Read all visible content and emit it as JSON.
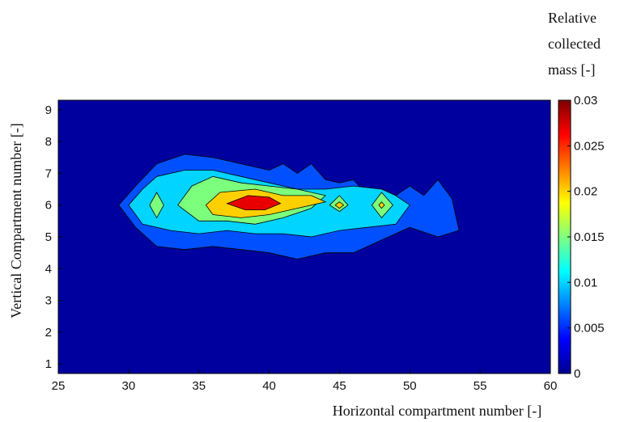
{
  "chart_data": {
    "type": "heatmap",
    "subtype": "filled-contour",
    "title": "",
    "xlabel": "Horizontal compartment number [-]",
    "ylabel": "Vertical Compartment number [-]",
    "xlim": [
      25,
      60
    ],
    "ylim": [
      1,
      9
    ],
    "x_ticks": [
      "25",
      "30",
      "35",
      "40",
      "45",
      "50",
      "55",
      "60"
    ],
    "y_ticks": [
      "1",
      "2",
      "3",
      "4",
      "5",
      "6",
      "7",
      "8",
      "9"
    ],
    "colorbar": {
      "title_lines": [
        "Relative",
        "collected",
        "mass [-]"
      ],
      "range": [
        0,
        0.03
      ],
      "ticks": [
        "0",
        "0.005",
        "0.01",
        "0.015",
        "0.02",
        "0.025",
        "0.03"
      ],
      "colormap": "jet"
    },
    "contour_levels": [
      {
        "level": 0,
        "color": "#00009F"
      },
      {
        "level": 0.005,
        "color": "#0050FF"
      },
      {
        "level": 0.01,
        "color": "#00D4FF"
      },
      {
        "level": 0.015,
        "color": "#7CFF7C"
      },
      {
        "level": 0.02,
        "color": "#FFD000"
      },
      {
        "level": 0.025,
        "color": "#E80000"
      }
    ],
    "regions": [
      {
        "level": 0.005,
        "polygon": [
          [
            29.3,
            6.0
          ],
          [
            30.5,
            6.6
          ],
          [
            32,
            7.3
          ],
          [
            34,
            7.6
          ],
          [
            36,
            7.5
          ],
          [
            38,
            7.3
          ],
          [
            40,
            7.1
          ],
          [
            41,
            7.3
          ],
          [
            42,
            7.0
          ],
          [
            43,
            7.3
          ],
          [
            44,
            6.8
          ],
          [
            45,
            6.7
          ],
          [
            46,
            6.8
          ],
          [
            47,
            6.3
          ],
          [
            48,
            6.5
          ],
          [
            49,
            6.3
          ],
          [
            50,
            6.6
          ],
          [
            51,
            6.3
          ],
          [
            52,
            6.8
          ],
          [
            53,
            6.2
          ],
          [
            53.5,
            5.2
          ],
          [
            52,
            5.0
          ],
          [
            50,
            5.3
          ],
          [
            48,
            4.9
          ],
          [
            46,
            4.5
          ],
          [
            44,
            4.5
          ],
          [
            42,
            4.3
          ],
          [
            40,
            4.5
          ],
          [
            38,
            4.6
          ],
          [
            36,
            4.7
          ],
          [
            34,
            4.6
          ],
          [
            32,
            4.7
          ],
          [
            30.5,
            5.3
          ]
        ]
      },
      {
        "level": 0.01,
        "polygon": [
          [
            30,
            6.0
          ],
          [
            31,
            6.5
          ],
          [
            32,
            6.9
          ],
          [
            34,
            7.1
          ],
          [
            36,
            7.1
          ],
          [
            38,
            6.9
          ],
          [
            40,
            6.7
          ],
          [
            42,
            6.5
          ],
          [
            44,
            6.5
          ],
          [
            46,
            6.6
          ],
          [
            48,
            6.5
          ],
          [
            49,
            6.3
          ],
          [
            50,
            6.0
          ],
          [
            49,
            5.4
          ],
          [
            47,
            5.3
          ],
          [
            45,
            5.2
          ],
          [
            43,
            5.0
          ],
          [
            41,
            5.1
          ],
          [
            39,
            5.1
          ],
          [
            37,
            5.2
          ],
          [
            35,
            5.1
          ],
          [
            33,
            5.2
          ],
          [
            31,
            5.4
          ]
        ]
      },
      {
        "level": 0.015,
        "polygon": [
          [
            31.5,
            6.0
          ],
          [
            32,
            6.4
          ],
          [
            32.5,
            6.0
          ],
          [
            32,
            5.6
          ]
        ]
      },
      {
        "level": 0.015,
        "polygon": [
          [
            33.5,
            6.0
          ],
          [
            34.5,
            6.6
          ],
          [
            36,
            6.9
          ],
          [
            38,
            6.7
          ],
          [
            40,
            6.6
          ],
          [
            42,
            6.5
          ],
          [
            44,
            6.3
          ],
          [
            43,
            5.9
          ],
          [
            41,
            5.6
          ],
          [
            39,
            5.4
          ],
          [
            37,
            5.5
          ],
          [
            35,
            5.5
          ]
        ]
      },
      {
        "level": 0.015,
        "polygon": [
          [
            44.3,
            6.0
          ],
          [
            45,
            6.3
          ],
          [
            45.6,
            6.0
          ],
          [
            45,
            5.8
          ]
        ]
      },
      {
        "level": 0.015,
        "polygon": [
          [
            47.3,
            6.0
          ],
          [
            48,
            6.4
          ],
          [
            48.8,
            6.0
          ],
          [
            48,
            5.6
          ]
        ]
      },
      {
        "level": 0.02,
        "polygon": [
          [
            35.5,
            6.0
          ],
          [
            36.5,
            6.4
          ],
          [
            39,
            6.5
          ],
          [
            41,
            6.3
          ],
          [
            43,
            6.3
          ],
          [
            44,
            6.1
          ],
          [
            42,
            5.9
          ],
          [
            40,
            5.7
          ],
          [
            38,
            5.6
          ],
          [
            36,
            5.7
          ]
        ]
      },
      {
        "level": 0.02,
        "polygon": [
          [
            44.7,
            6.0
          ],
          [
            45,
            6.1
          ],
          [
            45.3,
            6.0
          ],
          [
            45,
            5.9
          ]
        ]
      },
      {
        "level": 0.02,
        "polygon": [
          [
            47.8,
            6.0
          ],
          [
            48,
            6.1
          ],
          [
            48.2,
            6.0
          ],
          [
            48,
            5.9
          ]
        ]
      },
      {
        "level": 0.025,
        "polygon": [
          [
            37,
            6.05
          ],
          [
            38.5,
            6.3
          ],
          [
            40,
            6.25
          ],
          [
            40.8,
            6.05
          ],
          [
            39.7,
            5.85
          ],
          [
            38.3,
            5.85
          ]
        ]
      }
    ],
    "grid": false,
    "legend": "colorbar-right"
  }
}
